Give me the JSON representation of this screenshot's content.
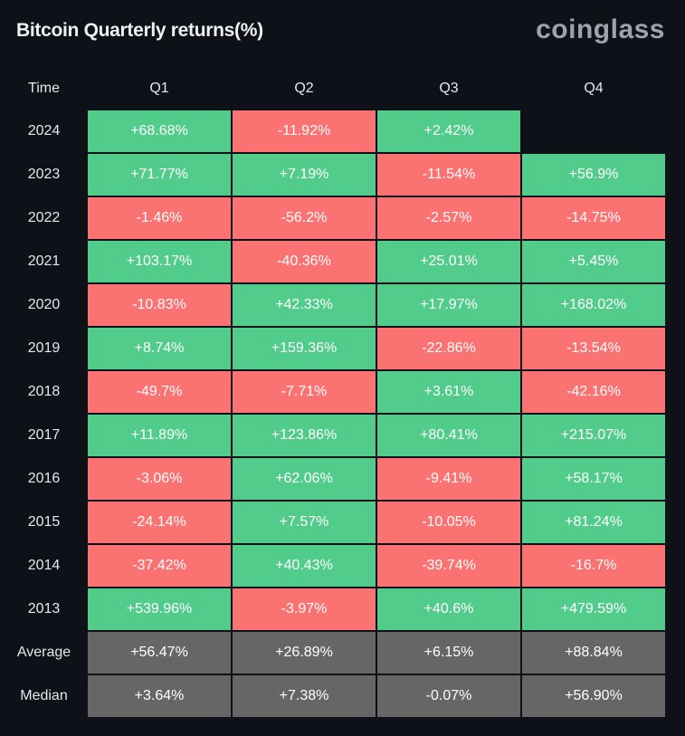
{
  "title": "Bitcoin Quarterly returns(%)",
  "logo": "coinglass",
  "colors": {
    "positive": "#52cc8a",
    "negative": "#fb7272",
    "summary": "#666666",
    "background": "#0e1117"
  },
  "chart_data": {
    "type": "table",
    "title": "Bitcoin Quarterly returns(%)",
    "columns": [
      "Time",
      "Q1",
      "Q2",
      "Q3",
      "Q4"
    ],
    "rows": [
      {
        "label": "2024",
        "values": [
          "+68.68%",
          "-11.92%",
          "+2.42%",
          ""
        ]
      },
      {
        "label": "2023",
        "values": [
          "+71.77%",
          "+7.19%",
          "-11.54%",
          "+56.9%"
        ]
      },
      {
        "label": "2022",
        "values": [
          "-1.46%",
          "-56.2%",
          "-2.57%",
          "-14.75%"
        ]
      },
      {
        "label": "2021",
        "values": [
          "+103.17%",
          "-40.36%",
          "+25.01%",
          "+5.45%"
        ]
      },
      {
        "label": "2020",
        "values": [
          "-10.83%",
          "+42.33%",
          "+17.97%",
          "+168.02%"
        ]
      },
      {
        "label": "2019",
        "values": [
          "+8.74%",
          "+159.36%",
          "-22.86%",
          "-13.54%"
        ]
      },
      {
        "label": "2018",
        "values": [
          "-49.7%",
          "-7.71%",
          "+3.61%",
          "-42.16%"
        ]
      },
      {
        "label": "2017",
        "values": [
          "+11.89%",
          "+123.86%",
          "+80.41%",
          "+215.07%"
        ]
      },
      {
        "label": "2016",
        "values": [
          "-3.06%",
          "+62.06%",
          "-9.41%",
          "+58.17%"
        ]
      },
      {
        "label": "2015",
        "values": [
          "-24.14%",
          "+7.57%",
          "-10.05%",
          "+81.24%"
        ]
      },
      {
        "label": "2014",
        "values": [
          "-37.42%",
          "+40.43%",
          "-39.74%",
          "-16.7%"
        ]
      },
      {
        "label": "2013",
        "values": [
          "+539.96%",
          "-3.97%",
          "+40.6%",
          "+479.59%"
        ]
      }
    ],
    "summary": [
      {
        "label": "Average",
        "values": [
          "+56.47%",
          "+26.89%",
          "+6.15%",
          "+88.84%"
        ]
      },
      {
        "label": "Median",
        "values": [
          "+3.64%",
          "+7.38%",
          "-0.07%",
          "+56.90%"
        ]
      }
    ]
  }
}
